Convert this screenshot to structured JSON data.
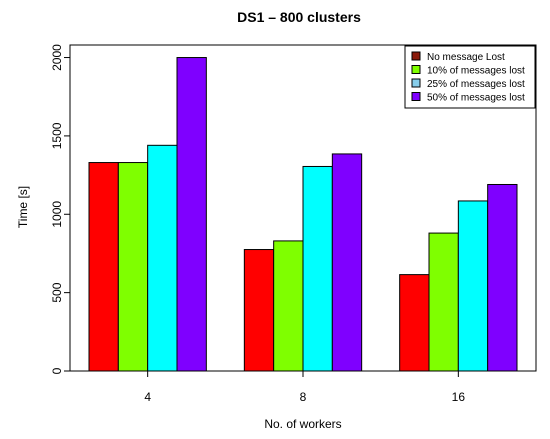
{
  "chart_data": {
    "type": "bar",
    "title": "DS1 – 800 clusters",
    "xlabel": "No. of workers",
    "ylabel": "Time [s]",
    "categories": [
      "4",
      "8",
      "16"
    ],
    "yticks": [
      0,
      500,
      1000,
      1500,
      2000
    ],
    "ylim": [
      0,
      2080
    ],
    "grid": false,
    "legend_position": "top-right",
    "series": [
      {
        "name": "No message Lost",
        "color": "#ff0000",
        "legend_color": "#8b1a0a",
        "values": [
          1330,
          775,
          615
        ]
      },
      {
        "name": "10% of messages lost",
        "color": "#7fff00",
        "legend_color": "#7fff00",
        "values": [
          1330,
          830,
          880
        ]
      },
      {
        "name": "25% of messages lost",
        "color": "#00ffff",
        "legend_color": "#87ceeb",
        "values": [
          1440,
          1305,
          1085
        ]
      },
      {
        "name": "50% of messages lost",
        "color": "#7f00ff",
        "legend_color": "#7f00ff",
        "values": [
          2000,
          1385,
          1190
        ]
      }
    ]
  }
}
